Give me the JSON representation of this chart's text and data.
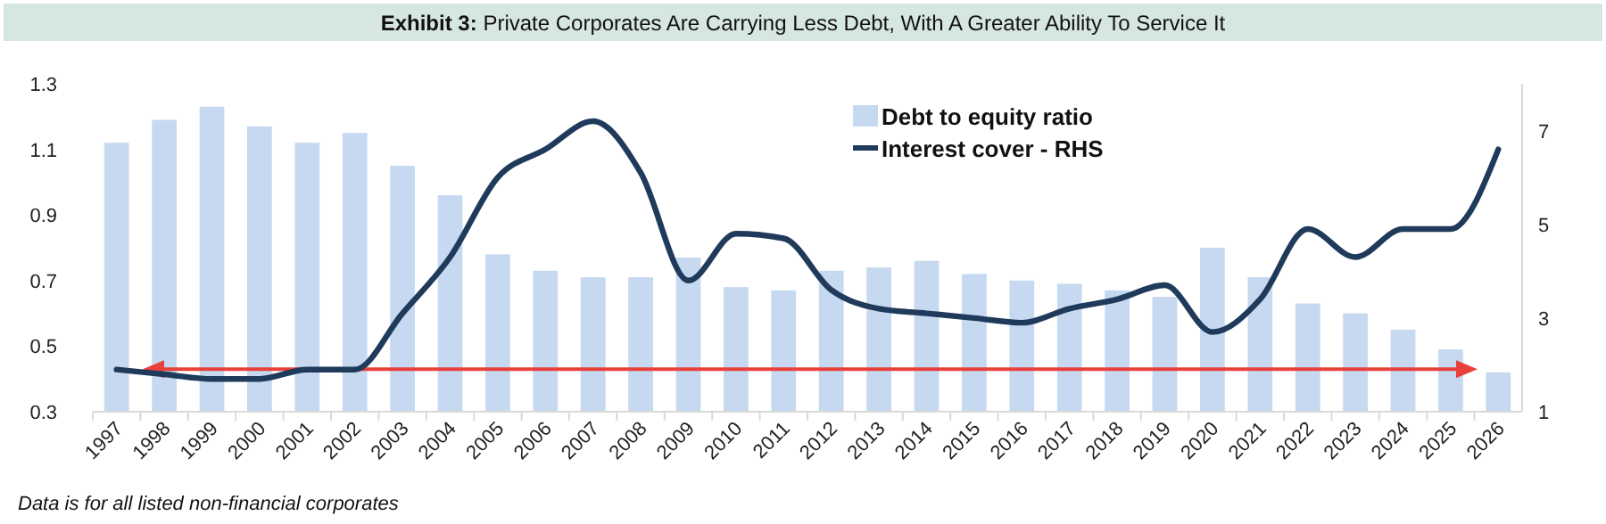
{
  "chart_data": {
    "type": "bar",
    "title": "Exhibit 3: Private Corporates Are Carrying Less Debt, With A Greater Ability To Service It",
    "categories": [
      "1997",
      "1998",
      "1999",
      "2000",
      "2001",
      "2002",
      "2003",
      "2004",
      "2005",
      "2006",
      "2007",
      "2008",
      "2009",
      "2010",
      "2011",
      "2012",
      "2013",
      "2014",
      "2015",
      "2016",
      "2017",
      "2018",
      "2019",
      "2020",
      "2021",
      "2022",
      "2023",
      "2024",
      "2025",
      "2026"
    ],
    "series": [
      {
        "name": "Debt to equity ratio",
        "color": "#c6d9f0",
        "values": [
          1.12,
          1.19,
          1.23,
          1.17,
          1.12,
          1.15,
          1.05,
          0.96,
          0.78,
          0.73,
          0.71,
          0.71,
          0.77,
          0.68,
          0.67,
          0.73,
          0.74,
          0.76,
          0.72,
          0.7,
          0.69,
          0.67,
          0.65,
          0.8,
          0.71,
          0.63,
          0.6,
          0.55,
          0.49,
          0.42
        ]
      },
      {
        "name": "Interest cover - RHS",
        "type": "line",
        "axis": "y2",
        "color": "#1f3a5a",
        "values": [
          1.9,
          1.8,
          1.7,
          1.7,
          1.9,
          1.9,
          3.1,
          4.3,
          6.0,
          6.6,
          7.2,
          6.1,
          3.8,
          4.8,
          4.7,
          3.6,
          3.2,
          3.1,
          3.0,
          2.9,
          3.2,
          3.4,
          3.7,
          2.7,
          3.4,
          4.9,
          4.3,
          4.9,
          4.9,
          6.6
        ]
      }
    ],
    "ylim": [
      0.3,
      1.3
    ],
    "yticks": [
      0.3,
      0.5,
      0.7,
      0.9,
      1.1,
      1.3
    ],
    "y2lim": [
      1,
      8
    ],
    "y2ticks": [
      1,
      3,
      5,
      7
    ],
    "ref_lines": [
      {
        "axis": "y",
        "value": 0.43,
        "color": "#e8403a"
      }
    ],
    "grid": false,
    "legend": "top right",
    "marker": "none",
    "line_style": "solid",
    "annotations": [
      "Data is for all listed non-financial corporates"
    ]
  }
}
